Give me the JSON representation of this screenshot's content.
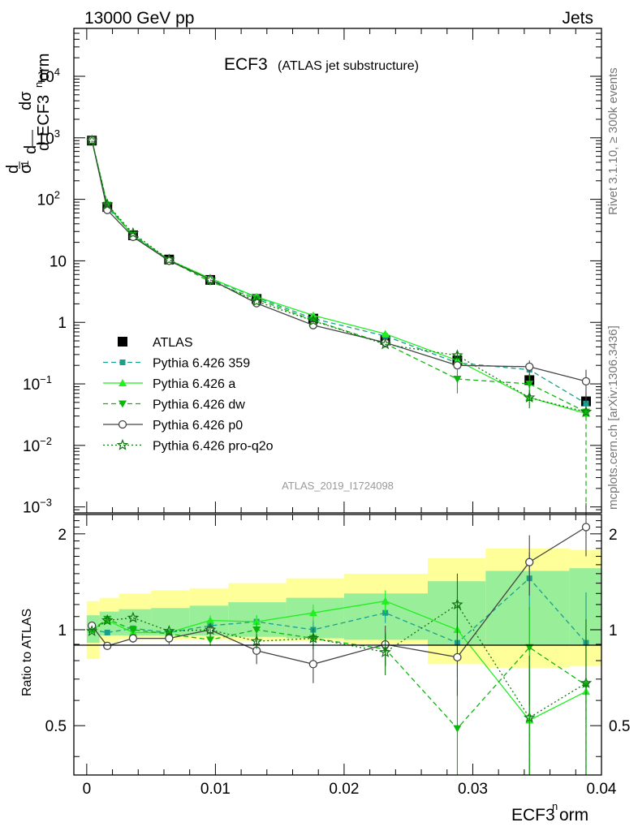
{
  "header": {
    "left": "13000 GeV pp",
    "right": "Jets"
  },
  "side_labels": {
    "rivet": "Rivet 3.1.10, ≥ 300k events",
    "mcplots": "mcplots.cern.ch [arXiv:1306.3436]"
  },
  "chart_data": [
    {
      "type": "scatter",
      "panel": "main",
      "title": "ECF3",
      "subtitle": "(ATLAS jet substructure)",
      "watermark": "ATLAS_2019_I1724098",
      "ylabel": "1/σ dσ/d ECF3norm",
      "yscale": "log",
      "ylim": [
        0.0008,
        60000
      ],
      "xlim": [
        -0.001,
        0.04
      ],
      "yticks": [
        {
          "value": 0.001,
          "base": "10",
          "exp": "−3"
        },
        {
          "value": 0.01,
          "base": "10",
          "exp": "−2"
        },
        {
          "value": 0.1,
          "base": "10",
          "exp": "−1"
        },
        {
          "value": 1,
          "base": "1",
          "exp": ""
        },
        {
          "value": 10,
          "base": "10",
          "exp": ""
        },
        {
          "value": 100,
          "base": "10",
          "exp": "2"
        },
        {
          "value": 1000,
          "base": "10",
          "exp": "3"
        },
        {
          "value": 10000,
          "base": "10",
          "exp": "4"
        }
      ],
      "legend_position": "center-left",
      "x": [
        0.0004,
        0.0016,
        0.0036,
        0.0064,
        0.0096,
        0.0132,
        0.0176,
        0.0232,
        0.0288,
        0.0344,
        0.0388
      ],
      "series": [
        {
          "name": "ATLAS",
          "color": "#000000",
          "marker": "square",
          "dash": "none",
          "values": [
            900,
            75,
            26,
            10.5,
            4.9,
            2.4,
            1.15,
            0.52,
            0.24,
            0.115,
            0.052
          ],
          "errors": [
            0,
            6,
            2,
            0.8,
            0.4,
            0.2,
            0.1,
            0.06,
            0.05,
            0.03,
            0.02
          ]
        },
        {
          "name": "Pythia 6.426 359",
          "color": "#19a08c",
          "marker": "square-small",
          "dash": "dashed",
          "values": [
            920,
            74,
            26.5,
            10.3,
            5.0,
            2.55,
            1.15,
            0.6,
            0.22,
            0.17,
            0.048
          ],
          "errors": [
            0,
            0,
            0,
            0,
            0,
            0,
            0,
            0,
            0,
            0,
            0
          ]
        },
        {
          "name": "Pythia 6.426 a",
          "color": "#22ee22",
          "marker": "triangle-up",
          "dash": "solid",
          "values": [
            920,
            80,
            25.5,
            10.3,
            5.2,
            2.6,
            1.3,
            0.65,
            0.24,
            0.06,
            0.033
          ],
          "errors": [
            0,
            0,
            0,
            0,
            0,
            0,
            0,
            0,
            0,
            0,
            0
          ]
        },
        {
          "name": "Pythia 6.426 dw",
          "color": "#0bb60b",
          "marker": "triangle-down",
          "dash": "dashed",
          "values": [
            920,
            81,
            26,
            10.2,
            4.6,
            2.4,
            1.08,
            0.45,
            0.12,
            0.1,
            0.035
          ],
          "errors": [
            0,
            0,
            0,
            0,
            0,
            0,
            0,
            0,
            0.05,
            0.04,
            0
          ]
        },
        {
          "name": "Pythia 6.426 p0",
          "color": "#444444",
          "marker": "circle-open",
          "dash": "solid",
          "values": [
            920,
            67,
            24.5,
            10.0,
            5.0,
            2.05,
            0.9,
            0.47,
            0.2,
            0.19,
            0.11
          ],
          "errors": [
            0,
            0,
            0,
            0,
            0,
            0,
            0,
            0,
            0,
            0.05,
            0.06
          ]
        },
        {
          "name": "Pythia 6.426 pro-q2o",
          "color": "#127312",
          "marker": "star-open",
          "dash": "dotted",
          "values": [
            900,
            82,
            28,
            10.4,
            4.9,
            2.2,
            1.06,
            0.44,
            0.29,
            0.06,
            0.035
          ],
          "errors": [
            0,
            0,
            0,
            0,
            0,
            0,
            0,
            0,
            0.05,
            0.02,
            0
          ]
        }
      ]
    },
    {
      "type": "scatter",
      "panel": "ratio",
      "ylabel": "Ratio to ATLAS",
      "xlabel": "ECF3norm",
      "xlim": [
        -0.001,
        0.04
      ],
      "ylim": [
        0.35,
        2.3
      ],
      "yticks": [
        0.5,
        1,
        2
      ],
      "xticks": [
        0,
        0.01,
        0.02,
        0.03,
        0.04
      ],
      "xtick_labels": [
        "0",
        "0.01",
        "0.02",
        "0.03",
        "0.04"
      ],
      "bin_edges": [
        0,
        0.001,
        0.0025,
        0.005,
        0.008,
        0.011,
        0.0155,
        0.02,
        0.0265,
        0.031,
        0.0375,
        0.04
      ],
      "band_yellow": {
        "lo": [
          0.81,
          0.91,
          0.93,
          0.93,
          0.93,
          0.92,
          0.92,
          0.9,
          0.78,
          0.76,
          0.77
        ],
        "hi": [
          1.23,
          1.26,
          1.3,
          1.33,
          1.35,
          1.4,
          1.45,
          1.5,
          1.68,
          1.8,
          1.78
        ]
      },
      "band_green": {
        "lo": [
          0.91,
          0.96,
          0.96,
          0.96,
          0.96,
          0.95,
          0.94,
          0.93,
          0.89,
          0.89,
          0.89
        ],
        "hi": [
          1.11,
          1.14,
          1.16,
          1.17,
          1.19,
          1.22,
          1.26,
          1.3,
          1.42,
          1.53,
          1.56
        ]
      },
      "series": [
        {
          "name": "Pythia 6.426 359",
          "color": "#19a08c",
          "marker": "square-small",
          "dash": "dashed",
          "values": [
            1.0,
            0.98,
            1.01,
            0.98,
            1.03,
            1.06,
            1.0,
            1.13,
            0.91,
            1.45,
            0.91
          ],
          "errors": [
            0,
            0,
            0,
            0,
            0,
            0.05,
            0.07,
            0.08,
            0.2,
            0.3,
            0.4
          ]
        },
        {
          "name": "Pythia 6.426 a",
          "color": "#22ee22",
          "marker": "triangle-up",
          "dash": "solid",
          "values": [
            1.0,
            1.07,
            0.98,
            0.98,
            1.07,
            1.06,
            1.13,
            1.23,
            1.0,
            0.52,
            0.64
          ],
          "errors": [
            0,
            0,
            0,
            0,
            0.04,
            0.05,
            0.07,
            0.1,
            0.2,
            0.25,
            0.3
          ]
        },
        {
          "name": "Pythia 6.426 dw",
          "color": "#0bb60b",
          "marker": "triangle-down",
          "dash": "dashed",
          "values": [
            1.0,
            1.08,
            1.0,
            0.97,
            0.93,
            1.0,
            0.94,
            0.87,
            0.49,
            0.88,
            0.67
          ],
          "errors": [
            0,
            0,
            0,
            0,
            0.04,
            0.05,
            0.07,
            0.1,
            0.2,
            0.3,
            0.4
          ]
        },
        {
          "name": "Pythia 6.426 p0",
          "color": "#444444",
          "marker": "circle-open",
          "dash": "solid",
          "values": [
            1.03,
            0.89,
            0.94,
            0.94,
            1.0,
            0.86,
            0.78,
            0.9,
            0.82,
            1.63,
            2.1
          ],
          "errors": [
            0,
            0.02,
            0.03,
            0.04,
            0.05,
            0.08,
            0.1,
            0.13,
            0.2,
            0.35,
            0.4
          ]
        },
        {
          "name": "Pythia 6.426 pro-q2o",
          "color": "#127312",
          "marker": "star-open",
          "dash": "dotted",
          "values": [
            0.99,
            1.07,
            1.09,
            0.99,
            1.0,
            0.92,
            0.94,
            0.85,
            1.2,
            0.53,
            0.68
          ],
          "errors": [
            0,
            0,
            0,
            0,
            0.04,
            0.05,
            0.07,
            0.13,
            0.3,
            0.3,
            0.4
          ]
        }
      ]
    }
  ]
}
